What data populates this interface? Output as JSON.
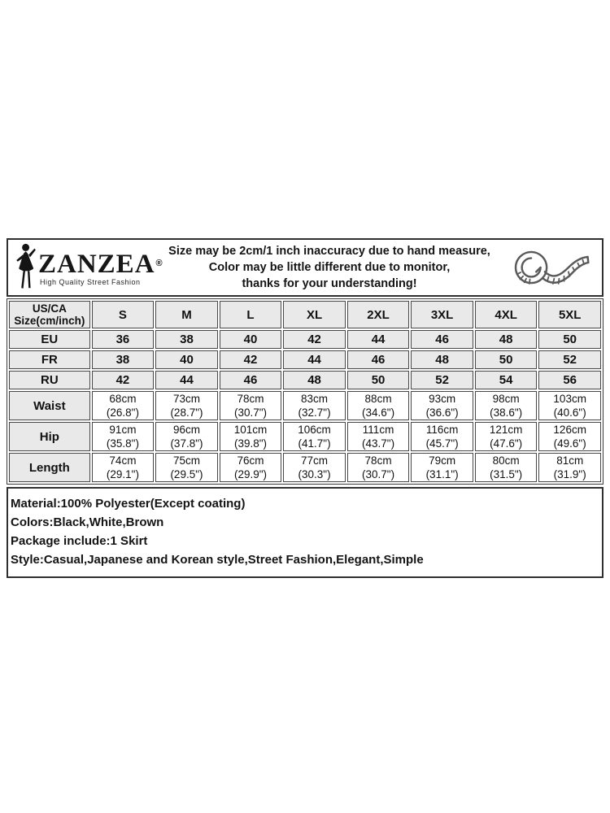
{
  "brand": {
    "name": "ZANZEA",
    "registered_mark": "®",
    "tagline": "High Quality Street Fashion"
  },
  "notice": {
    "line1": "Size may be 2cm/1 inch inaccuracy due to hand measure,",
    "line2": "Color may be little different due to monitor,",
    "line3": "thanks for your understanding!"
  },
  "size_table": {
    "corner": {
      "line1": "US/CA",
      "line2": "Size(cm/inch)"
    },
    "columns": [
      "S",
      "M",
      "L",
      "XL",
      "2XL",
      "3XL",
      "4XL",
      "5XL"
    ],
    "size_rows": [
      {
        "label": "EU",
        "values": [
          "36",
          "38",
          "40",
          "42",
          "44",
          "46",
          "48",
          "50"
        ]
      },
      {
        "label": "FR",
        "values": [
          "38",
          "40",
          "42",
          "44",
          "46",
          "48",
          "50",
          "52"
        ]
      },
      {
        "label": "RU",
        "values": [
          "42",
          "44",
          "46",
          "48",
          "50",
          "52",
          "54",
          "56"
        ]
      }
    ],
    "measure_rows": [
      {
        "label": "Waist",
        "values": [
          {
            "cm": "68cm",
            "inch": "(26.8\")"
          },
          {
            "cm": "73cm",
            "inch": "(28.7\")"
          },
          {
            "cm": "78cm",
            "inch": "(30.7\")"
          },
          {
            "cm": "83cm",
            "inch": "(32.7\")"
          },
          {
            "cm": "88cm",
            "inch": "(34.6\")"
          },
          {
            "cm": "93cm",
            "inch": "(36.6\")"
          },
          {
            "cm": "98cm",
            "inch": "(38.6\")"
          },
          {
            "cm": "103cm",
            "inch": "(40.6\")"
          }
        ]
      },
      {
        "label": "Hip",
        "values": [
          {
            "cm": "91cm",
            "inch": "(35.8\")"
          },
          {
            "cm": "96cm",
            "inch": "(37.8\")"
          },
          {
            "cm": "101cm",
            "inch": "(39.8\")"
          },
          {
            "cm": "106cm",
            "inch": "(41.7\")"
          },
          {
            "cm": "111cm",
            "inch": "(43.7\")"
          },
          {
            "cm": "116cm",
            "inch": "(45.7\")"
          },
          {
            "cm": "121cm",
            "inch": "(47.6\")"
          },
          {
            "cm": "126cm",
            "inch": "(49.6\")"
          }
        ]
      },
      {
        "label": "Length",
        "values": [
          {
            "cm": "74cm",
            "inch": "(29.1\")"
          },
          {
            "cm": "75cm",
            "inch": "(29.5\")"
          },
          {
            "cm": "76cm",
            "inch": "(29.9\")"
          },
          {
            "cm": "77cm",
            "inch": "(30.3\")"
          },
          {
            "cm": "78cm",
            "inch": "(30.7\")"
          },
          {
            "cm": "79cm",
            "inch": "(31.1\")"
          },
          {
            "cm": "80cm",
            "inch": "(31.5\")"
          },
          {
            "cm": "81cm",
            "inch": "(31.9\")"
          }
        ]
      }
    ]
  },
  "product_info": {
    "material": "Material:100% Polyester(Except coating)",
    "colors": "Colors:Black,White,Brown",
    "package": "Package include:1 Skirt",
    "style": "Style:Casual,Japanese and Korean style,Street Fashion,Elegant,Simple"
  },
  "icons": {
    "woman": "woman-silhouette-icon",
    "tape": "measuring-tape-icon"
  },
  "colors": {
    "outer_border": "#2f2f2f",
    "cell_border": "#474747",
    "shaded_cell": "#e9e9e9",
    "white_cell": "#ffffff",
    "text": "#141414",
    "tape_stroke": "#5a5a5a"
  }
}
